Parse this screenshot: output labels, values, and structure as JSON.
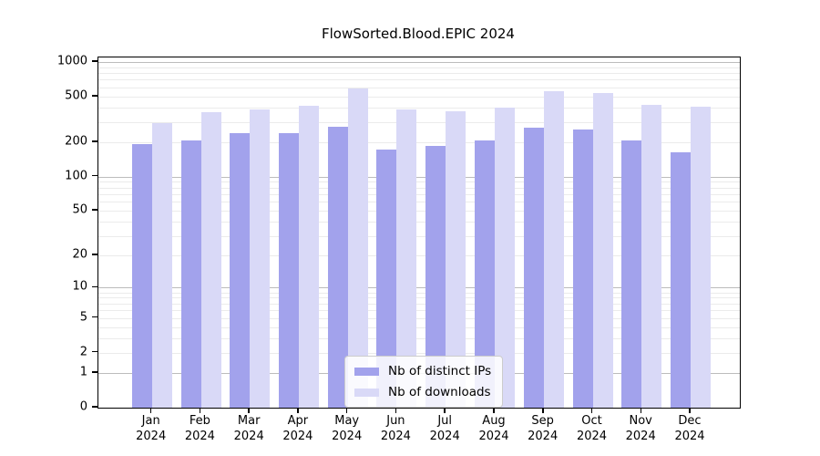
{
  "title": "FlowSorted.Blood.EPIC 2024",
  "legend": {
    "items": [
      {
        "label": "Nb of distinct IPs",
        "color": "#a2a2ec"
      },
      {
        "label": "Nb of downloads",
        "color": "#d9d9f7"
      }
    ]
  },
  "colors": {
    "bar_distinct_ips": "#a2a2ec",
    "bar_downloads": "#d9d9f7",
    "grid_major": "#bcbcbc",
    "grid_minor": "#ebebeb",
    "axis": "#000000"
  },
  "chart_data": {
    "type": "bar",
    "title": "FlowSorted.Blood.EPIC 2024",
    "yscale": "log1p",
    "grid": true,
    "legend_position": "bottom-center",
    "categories": [
      "Jan",
      "Feb",
      "Mar",
      "Apr",
      "May",
      "Jun",
      "Jul",
      "Aug",
      "Sep",
      "Oct",
      "Nov",
      "Dec"
    ],
    "category_year": "2024",
    "y_ticks": [
      1000,
      500,
      200,
      100,
      50,
      20,
      10,
      5,
      2,
      1,
      0
    ],
    "ylim": [
      0,
      1100
    ],
    "series": [
      {
        "name": "Nb of distinct IPs",
        "color": "#a2a2ec",
        "values": [
          194,
          206,
          242,
          242,
          274,
          174,
          185,
          207,
          270,
          257,
          209,
          163
        ]
      },
      {
        "name": "Nb of downloads",
        "color": "#d9d9f7",
        "values": [
          291,
          367,
          386,
          417,
          590,
          387,
          369,
          400,
          558,
          540,
          423,
          404
        ]
      }
    ]
  }
}
